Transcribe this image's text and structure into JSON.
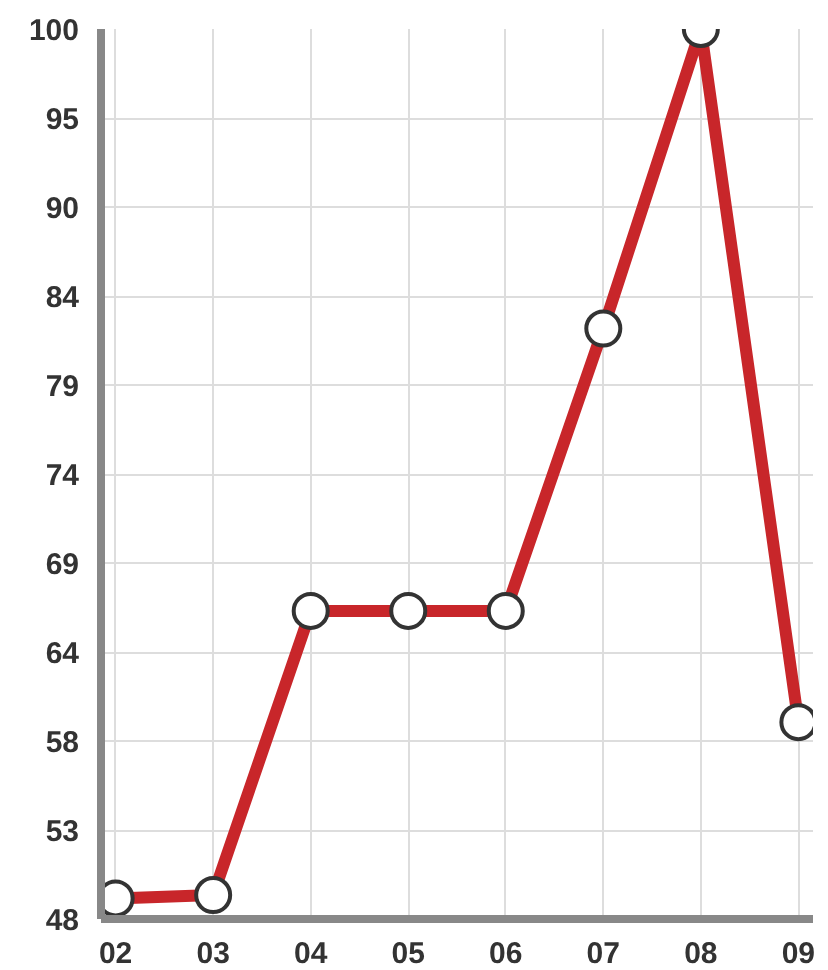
{
  "chart_data": {
    "type": "line",
    "categories": [
      "02",
      "03",
      "04",
      "05",
      "06",
      "07",
      "08",
      "09"
    ],
    "series": [
      {
        "color": "#c8262a",
        "values": [
          49.2,
          49.4,
          66,
          66,
          66,
          82.5,
          100,
          59.5
        ]
      }
    ],
    "ylim": [
      48,
      100
    ],
    "yticks": [
      48,
      {
        "value": 53.2,
        "label": "53"
      },
      {
        "value": 58.4,
        "label": "58"
      },
      {
        "value": 63.6,
        "label": "64"
      },
      {
        "value": 68.8,
        "label": "69"
      },
      74,
      {
        "value": 79.2,
        "label": "79"
      },
      {
        "value": 84.4,
        "label": "84"
      },
      {
        "value": 89.6,
        "label": "90"
      },
      {
        "value": 94.8,
        "label": "95"
      },
      100
    ],
    "grid": true,
    "marker": "circle",
    "line_style": "solid"
  }
}
